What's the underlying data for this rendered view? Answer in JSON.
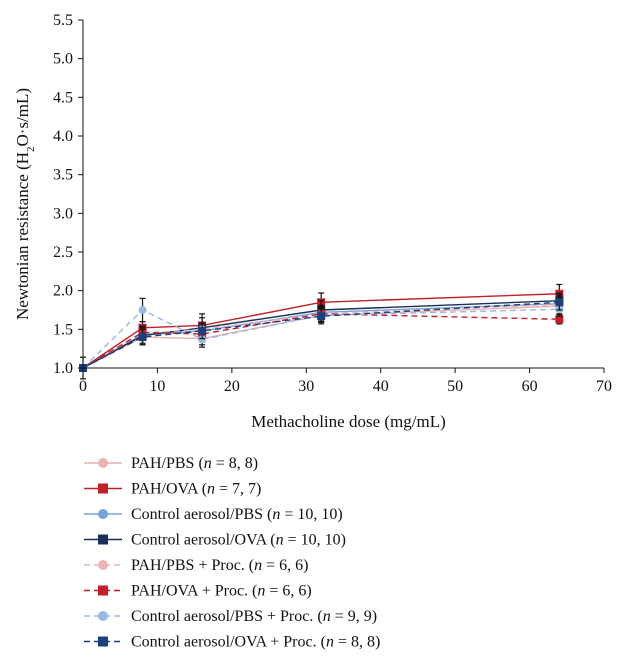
{
  "chart_data": {
    "type": "line",
    "title": "",
    "xlabel": "Methacholine dose (mg/mL)",
    "ylabel_parts": [
      "Newtonian resistance (H",
      "2",
      "O·s/mL)"
    ],
    "xlim": [
      0,
      70
    ],
    "ylim": [
      1.0,
      5.5
    ],
    "x_ticks": [
      0,
      10,
      20,
      30,
      40,
      50,
      60,
      70
    ],
    "y_ticks": [
      "1.0",
      "1.5",
      "2.0",
      "2.5",
      "3.0",
      "3.5",
      "4.0",
      "4.5",
      "5.0",
      "5.5"
    ],
    "grid": false,
    "legend_placement": "bottom",
    "x": [
      0,
      8,
      16,
      32,
      64
    ],
    "series": [
      {
        "name": "PAH/PBS",
        "n_label": "n",
        "n_values": "= 8, 8",
        "color": "#e8b4b4",
        "marker": "circle",
        "dashed": false,
        "values": [
          1.0,
          1.4,
          1.38,
          1.68,
          1.8
        ],
        "err": [
          0,
          0.08,
          0.08,
          0.08,
          0.1
        ]
      },
      {
        "name": "PAH/OVA",
        "n_label": "n",
        "n_values": "= 7, 7",
        "color": "#c0202a",
        "marker": "square",
        "dashed": false,
        "values": [
          1.0,
          1.52,
          1.55,
          1.85,
          1.96
        ],
        "err": [
          0,
          0.08,
          0.1,
          0.12,
          0.12
        ]
      },
      {
        "name": "Control aerosol/PBS",
        "n_label": "n",
        "n_values": "= 10, 10",
        "color": "#7aa0d8",
        "marker": "circle",
        "dashed": false,
        "values": [
          1.0,
          1.43,
          1.48,
          1.72,
          1.83
        ],
        "err": [
          0,
          0.07,
          0.08,
          0.09,
          0.1
        ]
      },
      {
        "name": "Control aerosol/OVA",
        "n_label": "n",
        "n_values": "= 10, 10",
        "color": "#1a2f5a",
        "marker": "square",
        "dashed": false,
        "values": [
          1.0,
          1.42,
          1.52,
          1.75,
          1.87
        ],
        "err": [
          0.14,
          0.12,
          0.18,
          0.12,
          0.1
        ]
      },
      {
        "name": "PAH/PBS + Proc.",
        "n_label": "n",
        "n_values": "= 6, 6",
        "color": "#e8b4b4",
        "marker": "circle",
        "dashed": true,
        "values": [
          1.0,
          1.45,
          1.5,
          1.7,
          1.82
        ],
        "err": [
          0,
          0.07,
          0.08,
          0.08,
          0.09
        ]
      },
      {
        "name": "PAH/OVA + Proc.",
        "n_label": "n",
        "n_values": "= 6, 6",
        "color": "#c0202a",
        "marker": "square",
        "dashed": true,
        "values": [
          1.0,
          1.46,
          1.44,
          1.7,
          1.63
        ],
        "err": [
          0,
          0.08,
          0.08,
          0.1,
          0.06
        ]
      },
      {
        "name": "Control aerosol/PBS + Proc.",
        "n_label": "n",
        "n_values": "= 9, 9",
        "color": "#9ab8e0",
        "marker": "circle",
        "dashed": true,
        "values": [
          1.0,
          1.75,
          1.37,
          1.68,
          1.76
        ],
        "err": [
          0,
          0.15,
          0.1,
          0.09,
          0.09
        ]
      },
      {
        "name": "Control aerosol/OVA + Proc.",
        "n_label": "n",
        "n_values": "= 8, 8",
        "color": "#1a3f7a",
        "marker": "square",
        "dashed": true,
        "values": [
          1.0,
          1.4,
          1.48,
          1.67,
          1.85
        ],
        "err": [
          0,
          0.1,
          0.1,
          0.1,
          0.1
        ]
      }
    ]
  }
}
